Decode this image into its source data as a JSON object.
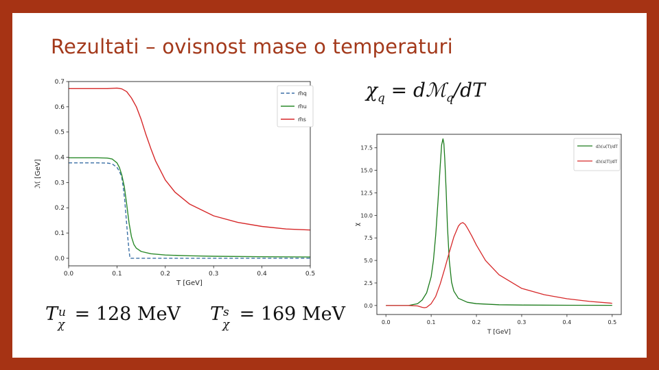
{
  "slide": {
    "title": "Rezultati – ovisnost mase o temperaturi"
  },
  "equations": {
    "chi_def": {
      "lhs": "χ",
      "lhs_sub": "q",
      "rhs_d": "d",
      "rhs_M": "ℳ",
      "rhs_sub": "q",
      "rhs_tail": "/dT"
    },
    "T_u": {
      "sym": "T",
      "sup": "u",
      "sub": "χ",
      "eq": "= 128 MeV"
    },
    "T_s": {
      "sym": "T",
      "sup": "s",
      "sub": "χ",
      "eq": "= 169 MeV"
    }
  },
  "chart_data": [
    {
      "type": "line",
      "xlabel": "T [GeV]",
      "ylabel": "ℳ [GeV]",
      "xlim": [
        0.0,
        0.5
      ],
      "ylim": [
        -0.03,
        0.7
      ],
      "xticks": [
        "0.0",
        "0.1",
        "0.2",
        "0.3",
        "0.4",
        "0.5"
      ],
      "yticks": [
        "0.0",
        "0.1",
        "0.2",
        "0.3",
        "0.4",
        "0.5",
        "0.6",
        "0.7"
      ],
      "legend_position": "top-right",
      "grid": false,
      "series": [
        {
          "name": "m̃q",
          "color": "#3a6fa5",
          "style": "dashed",
          "x": [
            0.0,
            0.03,
            0.06,
            0.08,
            0.09,
            0.1,
            0.105,
            0.11,
            0.113,
            0.116,
            0.119,
            0.122,
            0.125,
            0.127,
            0.1275,
            0.2,
            0.3,
            0.4,
            0.5
          ],
          "y": [
            0.378,
            0.378,
            0.378,
            0.377,
            0.374,
            0.36,
            0.345,
            0.32,
            0.28,
            0.23,
            0.16,
            0.09,
            0.03,
            0.0,
            0.0,
            0.0,
            0.0,
            0.0,
            0.0
          ]
        },
        {
          "name": "m̃u",
          "color": "#2a8a2a",
          "style": "solid",
          "x": [
            0.0,
            0.03,
            0.06,
            0.08,
            0.09,
            0.1,
            0.105,
            0.11,
            0.115,
            0.12,
            0.125,
            0.13,
            0.135,
            0.14,
            0.15,
            0.17,
            0.2,
            0.25,
            0.3,
            0.4,
            0.5
          ],
          "y": [
            0.398,
            0.398,
            0.398,
            0.397,
            0.393,
            0.378,
            0.36,
            0.33,
            0.285,
            0.215,
            0.14,
            0.085,
            0.055,
            0.04,
            0.027,
            0.018,
            0.013,
            0.01,
            0.008,
            0.006,
            0.005
          ]
        },
        {
          "name": "m̃s",
          "color": "#d62728",
          "style": "solid",
          "x": [
            0.0,
            0.05,
            0.08,
            0.1,
            0.11,
            0.12,
            0.13,
            0.14,
            0.15,
            0.16,
            0.17,
            0.18,
            0.2,
            0.22,
            0.25,
            0.3,
            0.35,
            0.4,
            0.45,
            0.5
          ],
          "y": [
            0.672,
            0.672,
            0.672,
            0.674,
            0.671,
            0.66,
            0.635,
            0.6,
            0.55,
            0.49,
            0.435,
            0.385,
            0.31,
            0.262,
            0.215,
            0.168,
            0.142,
            0.126,
            0.116,
            0.112
          ]
        }
      ]
    },
    {
      "type": "line",
      "xlabel": "T [GeV]",
      "ylabel": "χ",
      "xlim": [
        -0.02,
        0.52
      ],
      "ylim": [
        -1.0,
        19.0
      ],
      "xticks": [
        "0.0",
        "0.1",
        "0.2",
        "0.3",
        "0.4",
        "0.5"
      ],
      "yticks": [
        "0.0",
        "2.5",
        "5.0",
        "7.5",
        "10.0",
        "12.5",
        "15.0",
        "17.5"
      ],
      "legend_position": "top-right",
      "grid": false,
      "series": [
        {
          "name": "dℳu(T)/dT",
          "color": "#1a7a1a",
          "style": "solid",
          "x": [
            0.0,
            0.05,
            0.07,
            0.08,
            0.09,
            0.1,
            0.105,
            0.11,
            0.115,
            0.12,
            0.123,
            0.126,
            0.128,
            0.13,
            0.133,
            0.136,
            0.14,
            0.145,
            0.15,
            0.16,
            0.18,
            0.2,
            0.25,
            0.3,
            0.4,
            0.5
          ],
          "y": [
            0.0,
            0.0,
            0.2,
            0.6,
            1.4,
            3.2,
            5.0,
            7.8,
            11.5,
            15.5,
            17.8,
            18.5,
            18.0,
            16.3,
            12.8,
            8.8,
            5.0,
            2.6,
            1.6,
            0.8,
            0.35,
            0.2,
            0.08,
            0.05,
            0.03,
            0.02
          ]
        },
        {
          "name": "dℳs(T)/dT",
          "color": "#d62728",
          "style": "solid",
          "x": [
            0.0,
            0.05,
            0.07,
            0.08,
            0.085,
            0.09,
            0.1,
            0.11,
            0.12,
            0.13,
            0.14,
            0.15,
            0.16,
            0.165,
            0.17,
            0.175,
            0.18,
            0.19,
            0.2,
            0.22,
            0.25,
            0.3,
            0.35,
            0.4,
            0.45,
            0.5
          ],
          "y": [
            0.0,
            0.0,
            -0.05,
            -0.2,
            -0.25,
            -0.2,
            0.2,
            1.0,
            2.4,
            4.1,
            5.9,
            7.6,
            8.8,
            9.1,
            9.2,
            9.0,
            8.6,
            7.7,
            6.7,
            5.0,
            3.4,
            1.9,
            1.2,
            0.75,
            0.45,
            0.25
          ]
        }
      ]
    }
  ]
}
